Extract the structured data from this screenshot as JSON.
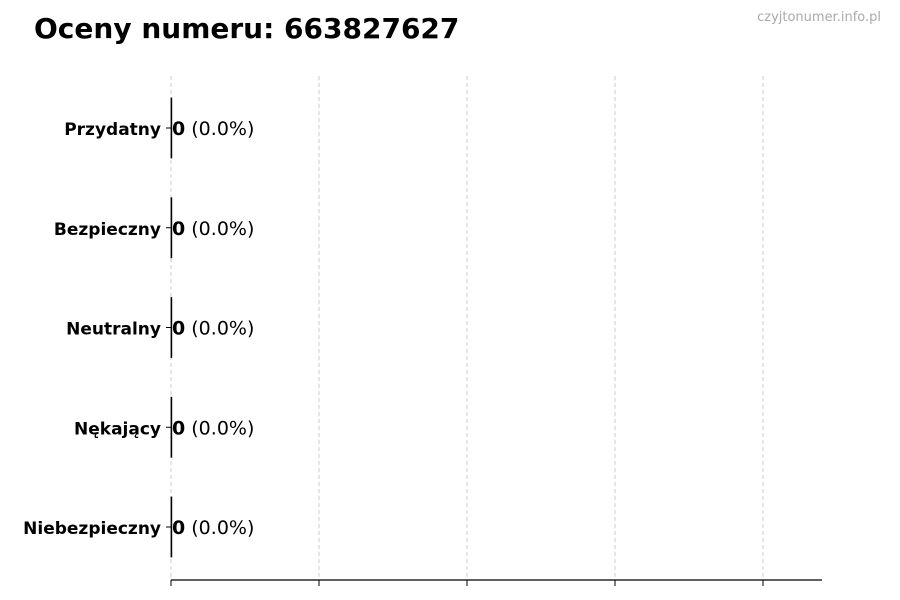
{
  "chart_data": {
    "type": "bar",
    "orientation": "horizontal",
    "title": "Oceny numeru: 663827627",
    "watermark": "czyjtonumer.info.pl",
    "categories": [
      "Przydatny",
      "Bezpieczny",
      "Neutralny",
      "Nękający",
      "Niebezpieczny"
    ],
    "values": [
      0,
      0,
      0,
      0,
      0
    ],
    "data_labels": [
      {
        "count": "0",
        "percent": "(0.0%)"
      },
      {
        "count": "0",
        "percent": "(0.0%)"
      },
      {
        "count": "0",
        "percent": "(0.0%)"
      },
      {
        "count": "0",
        "percent": "(0.0%)"
      },
      {
        "count": "0",
        "percent": "(0.0%)"
      }
    ],
    "xlabel": "",
    "ylabel": "",
    "x_ticks_count": 5,
    "x_tick_labels_shown": false,
    "grid": "vertical dashed",
    "grid_color": "#cccccc",
    "bar_edge_color": "#000000"
  }
}
